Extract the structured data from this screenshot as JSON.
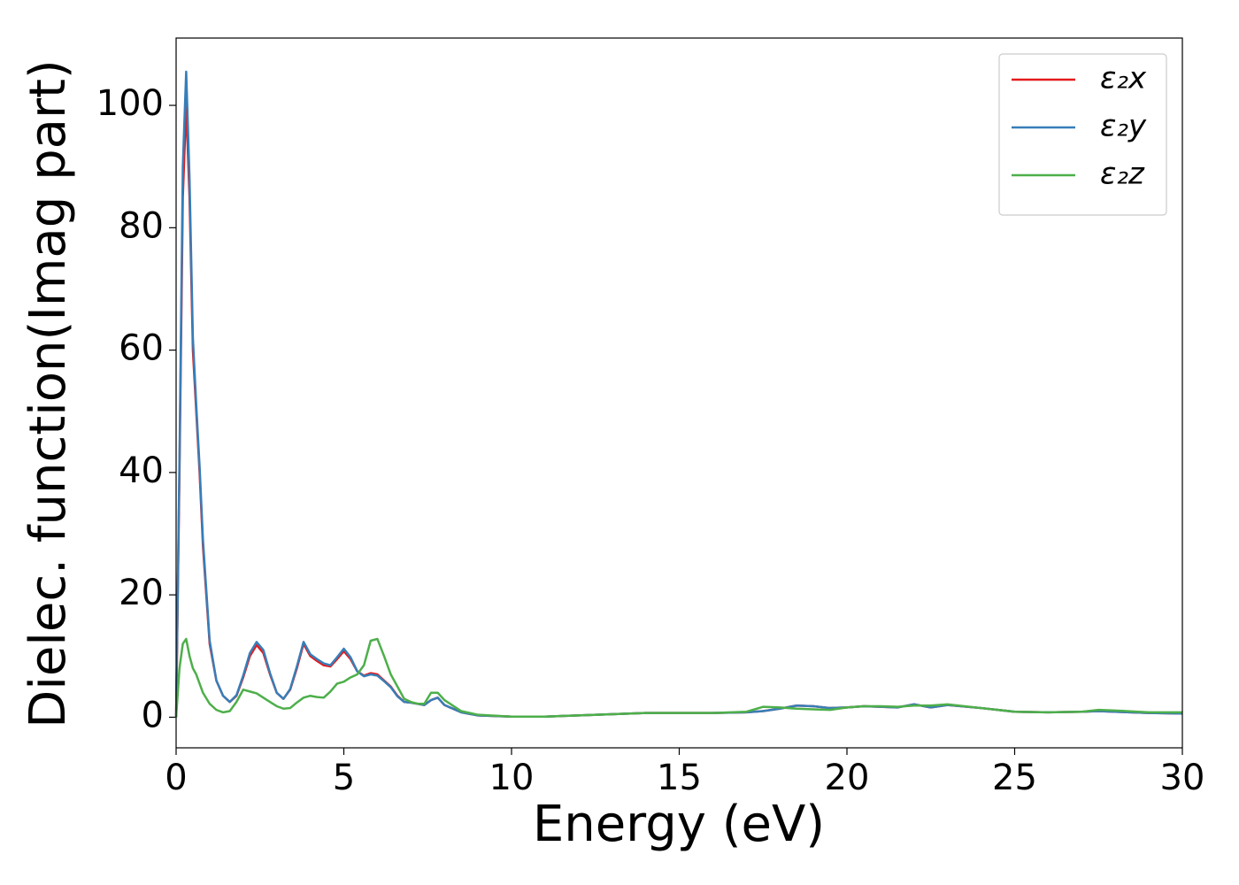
{
  "chart_data": {
    "type": "line",
    "xlabel": "Energy (eV)",
    "ylabel": "Dielec. function(Imag part)",
    "x": [
      0,
      0.1,
      0.2,
      0.3,
      0.4,
      0.5,
      0.6,
      0.7,
      0.8,
      1.0,
      1.2,
      1.4,
      1.6,
      1.8,
      2.0,
      2.2,
      2.4,
      2.6,
      2.8,
      3.0,
      3.2,
      3.4,
      3.6,
      3.8,
      4.0,
      4.2,
      4.4,
      4.6,
      4.8,
      5.0,
      5.2,
      5.4,
      5.6,
      5.8,
      6.0,
      6.2,
      6.4,
      6.6,
      6.8,
      7.0,
      7.2,
      7.4,
      7.6,
      7.8,
      8.0,
      8.5,
      9,
      10,
      11,
      12,
      13,
      14,
      15,
      16,
      17,
      17.5,
      18,
      18.5,
      19,
      19.5,
      20,
      20.5,
      21,
      21.5,
      22,
      22.5,
      23,
      24,
      25,
      26,
      27,
      27.5,
      28,
      29,
      30
    ],
    "series": [
      {
        "name": "ε₂x",
        "color": "#e41a1c",
        "values": [
          0,
          40,
          85,
          100,
          85,
          60,
          50,
          40,
          28,
          12,
          6,
          3.5,
          2.5,
          3.5,
          6.5,
          10,
          11.8,
          10.5,
          7,
          4,
          3,
          4.5,
          8,
          12,
          10,
          9.2,
          8.5,
          8.3,
          9.5,
          10.8,
          9.5,
          7.5,
          6.8,
          7.2,
          7,
          6,
          5,
          3.5,
          2.5,
          2.4,
          2.2,
          2.0,
          2.8,
          3.2,
          2.0,
          0.8,
          0.3,
          0.1,
          0.1,
          0.3,
          0.5,
          0.7,
          0.7,
          0.7,
          0.8,
          1.0,
          1.4,
          1.9,
          1.8,
          1.5,
          1.6,
          1.8,
          1.7,
          1.6,
          2.1,
          1.6,
          2.0,
          1.5,
          0.9,
          0.8,
          0.9,
          1.0,
          0.9,
          0.7,
          0.6
        ]
      },
      {
        "name": "ε₂y",
        "color": "#377eb8",
        "values": [
          0,
          42,
          90,
          105.5,
          88,
          62,
          51,
          41,
          29,
          12.5,
          6,
          3.5,
          2.5,
          3.6,
          6.8,
          10.5,
          12.3,
          11,
          7.2,
          4,
          3,
          4.6,
          8.3,
          12.3,
          10.3,
          9.5,
          8.8,
          8.5,
          9.8,
          11.2,
          9.8,
          7.5,
          6.7,
          7.0,
          6.8,
          5.9,
          4.9,
          3.4,
          2.5,
          2.4,
          2.2,
          2.0,
          2.8,
          3.2,
          2.0,
          0.8,
          0.3,
          0.1,
          0.1,
          0.3,
          0.5,
          0.7,
          0.7,
          0.7,
          0.8,
          1.0,
          1.4,
          1.9,
          1.8,
          1.5,
          1.6,
          1.8,
          1.7,
          1.6,
          2.1,
          1.6,
          2.0,
          1.5,
          0.9,
          0.8,
          0.9,
          1.0,
          0.9,
          0.7,
          0.6
        ]
      },
      {
        "name": "ε₂z",
        "color": "#4daf4a",
        "values": [
          0,
          8,
          12,
          12.8,
          10,
          8,
          7,
          5.5,
          4,
          2.2,
          1.2,
          0.8,
          1,
          2.5,
          4.5,
          4.2,
          3.9,
          3.2,
          2.5,
          1.8,
          1.4,
          1.5,
          2.4,
          3.2,
          3.5,
          3.3,
          3.2,
          4.2,
          5.5,
          5.8,
          6.5,
          7,
          8.5,
          12.5,
          12.8,
          10,
          7,
          5,
          3,
          2.5,
          2.2,
          2.2,
          4,
          4,
          2.8,
          1,
          0.4,
          0.1,
          0.1,
          0.3,
          0.5,
          0.7,
          0.7,
          0.7,
          0.9,
          1.7,
          1.6,
          1.4,
          1.3,
          1.2,
          1.6,
          1.8,
          1.8,
          1.7,
          1.9,
          1.9,
          2.1,
          1.5,
          0.9,
          0.8,
          0.9,
          1.2,
          1.1,
          0.8,
          0.8
        ]
      }
    ],
    "xlim": [
      0,
      30
    ],
    "xticks": [
      0,
      5,
      10,
      15,
      20,
      25,
      30
    ],
    "ylim": [
      -5,
      111
    ],
    "yticks": [
      0,
      20,
      40,
      60,
      80,
      100
    ],
    "legend": "upper right",
    "grid": false
  }
}
